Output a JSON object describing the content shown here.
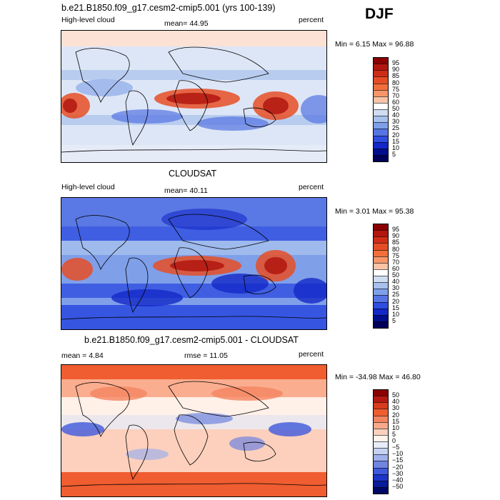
{
  "season": "DJF",
  "panels": [
    {
      "title": "b.e21.B1850.f09_g17.cesm2-cmip5.001 (yrs 100-139)",
      "left_label": "High-level cloud",
      "stat1": "mean=  44.95",
      "stat2": "",
      "units": "percent",
      "minmax": "Min =   6.15 Max =  96.88",
      "palette": "seq",
      "colorbar_labels": [
        "95",
        "90",
        "85",
        "80",
        "75",
        "70",
        "60",
        "50",
        "40",
        "30",
        "25",
        "20",
        "15",
        "10",
        "5"
      ]
    },
    {
      "title": "CLOUDSAT",
      "left_label": "High-level cloud",
      "stat1": "mean=  40.11",
      "stat2": "",
      "units": "percent",
      "minmax": "Min =   3.01 Max =  95.38",
      "palette": "seq",
      "colorbar_labels": [
        "95",
        "90",
        "85",
        "80",
        "75",
        "70",
        "60",
        "50",
        "40",
        "30",
        "25",
        "20",
        "15",
        "10",
        "5"
      ]
    },
    {
      "title": "b.e21.B1850.f09_g17.cesm2-cmip5.001 - CLOUDSAT",
      "left_label": "mean =    4.84",
      "stat1": "",
      "stat2": "rmse =   11.05",
      "units": "percent",
      "minmax": "Min = -34.98 Max =  46.80",
      "palette": "div",
      "colorbar_labels": [
        "50",
        "40",
        "30",
        "20",
        "15",
        "10",
        "5",
        "0",
        "−5",
        "−10",
        "−15",
        "−20",
        "−30",
        "−40",
        "−50"
      ]
    }
  ],
  "colors": {
    "seq": [
      "#8b0000",
      "#b2160f",
      "#d02d17",
      "#e64d26",
      "#f26f3c",
      "#f8966a",
      "#fac3a6",
      "#ffffff",
      "#cfdcf2",
      "#a8c0ec",
      "#7f9fe9",
      "#5674e3",
      "#2f4de0",
      "#1428c8",
      "#000e8e",
      "#00005a"
    ],
    "div": [
      "#8b0000",
      "#b51a12",
      "#d83b1e",
      "#ef5d30",
      "#f58560",
      "#f9a98a",
      "#fcd0bd",
      "#fff3ec",
      "#e7ecf8",
      "#c5d2f0",
      "#9fb1ea",
      "#6f85e0",
      "#3f59dc",
      "#1c34c8",
      "#081d9a",
      "#000866"
    ]
  }
}
